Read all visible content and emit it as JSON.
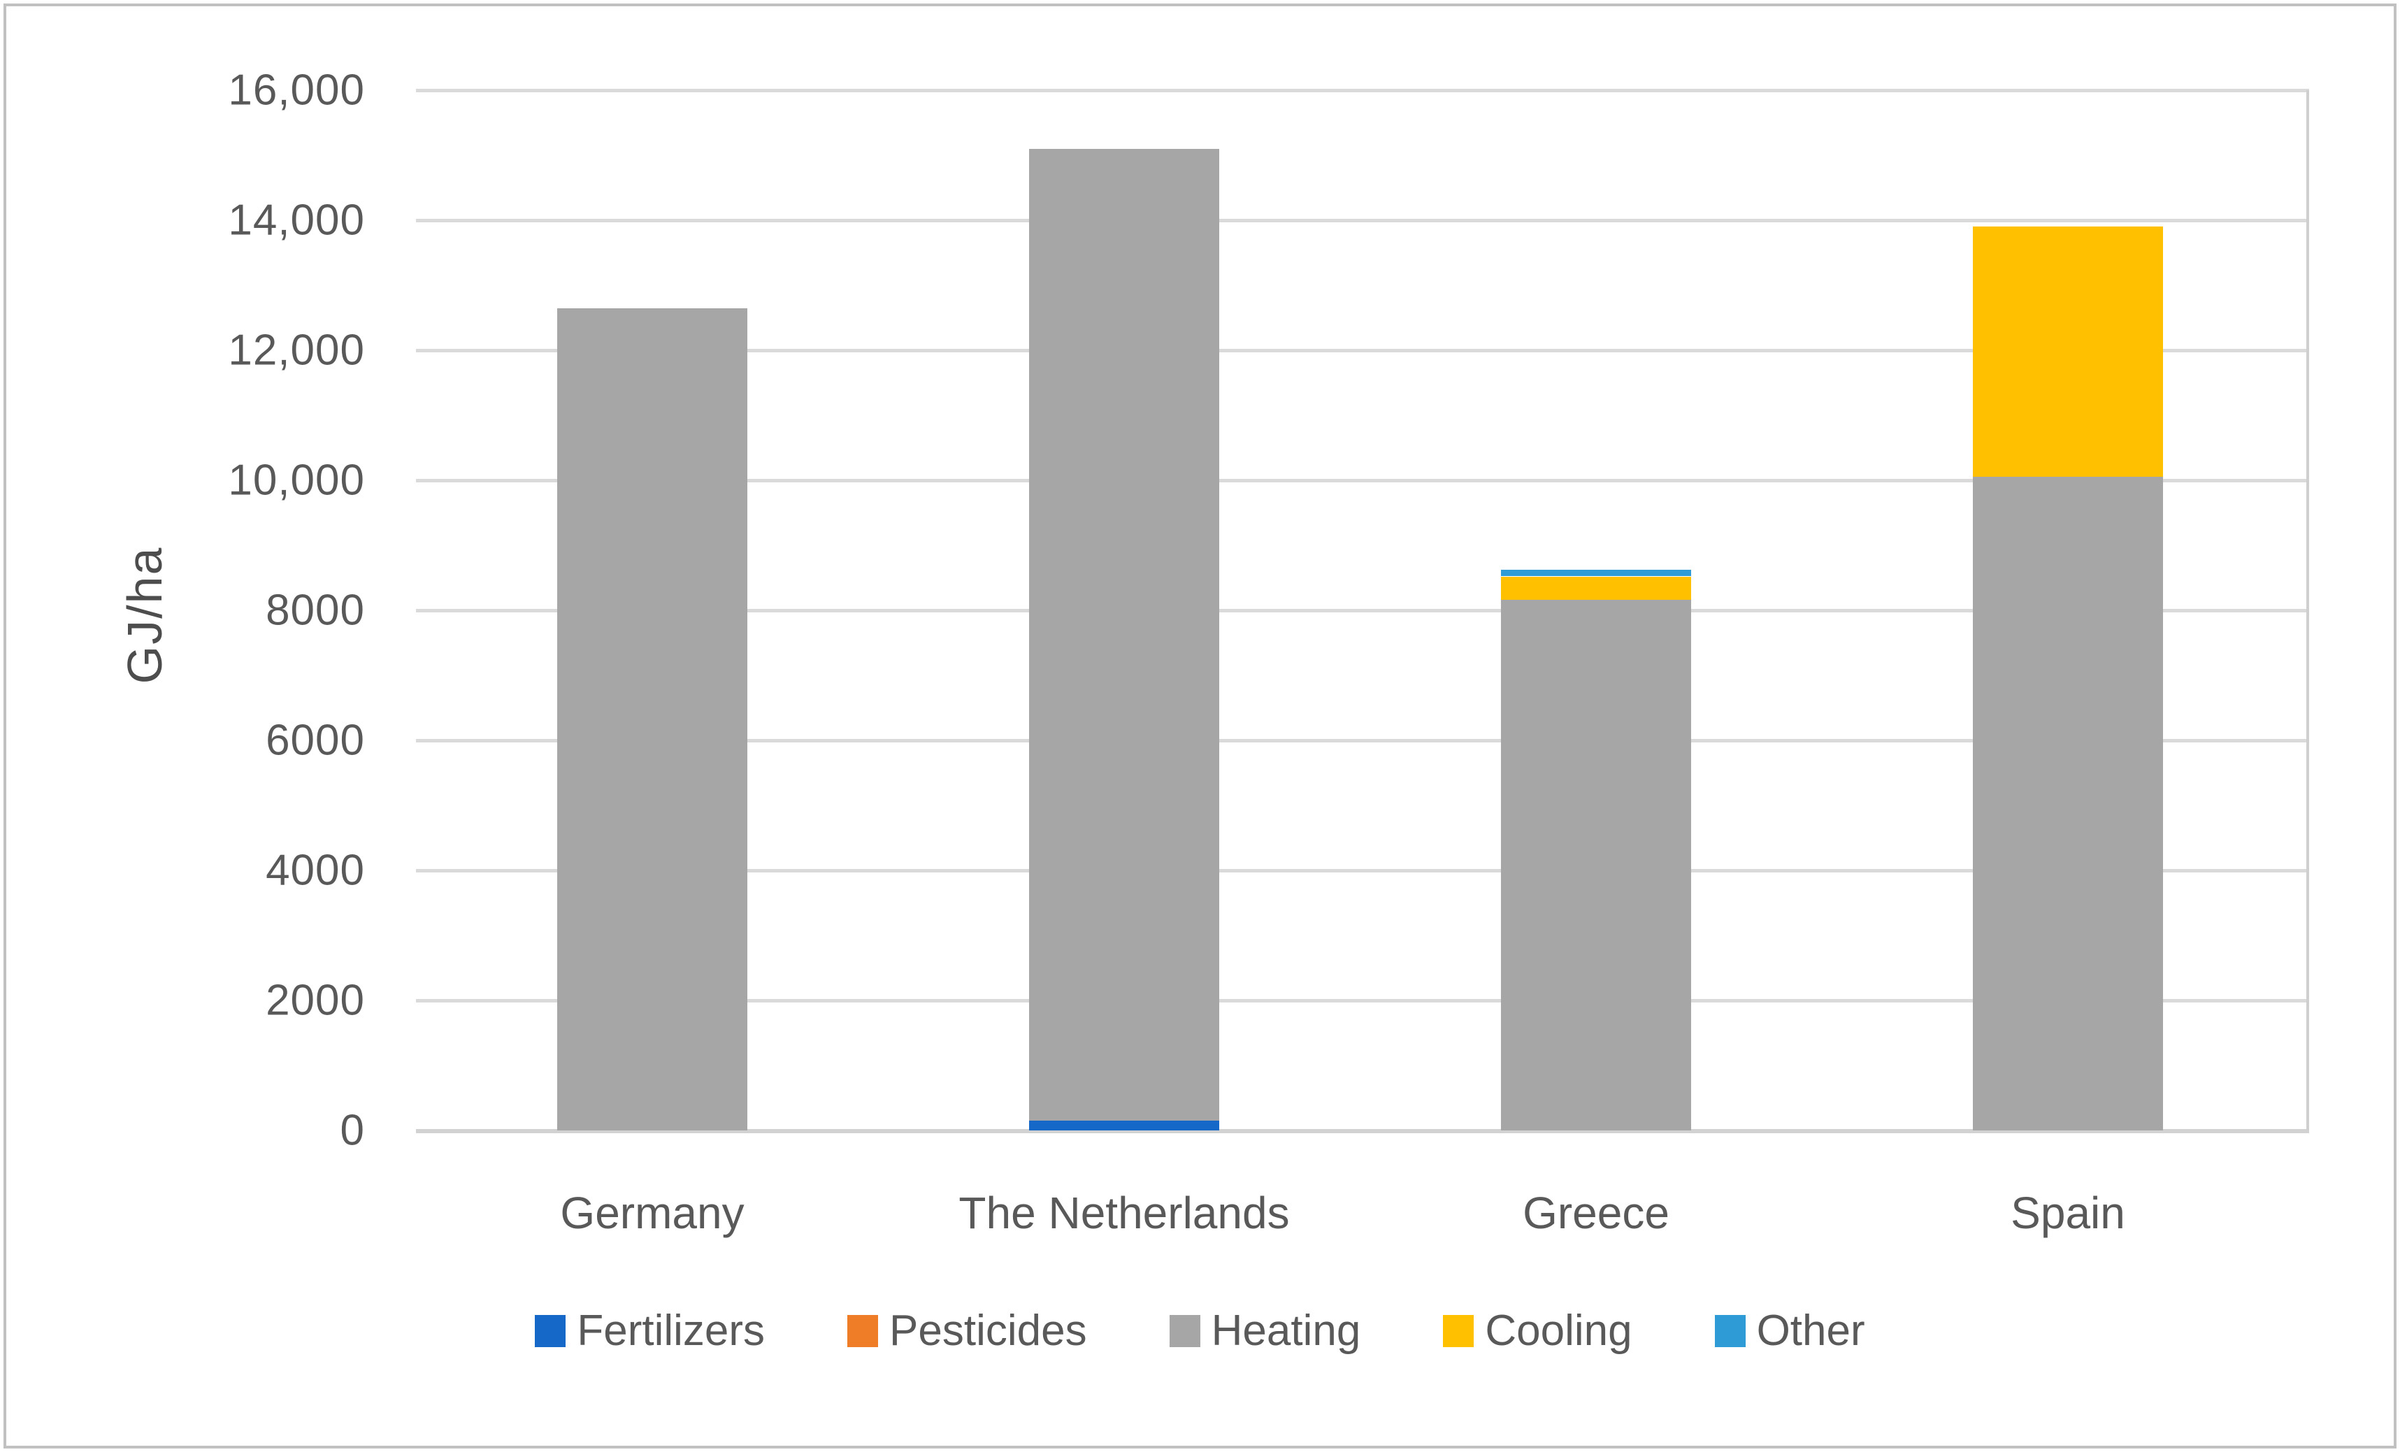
{
  "figure": {
    "background_color": "#ffffff",
    "border_color": "#c1c1c1"
  },
  "chart_data": {
    "type": "bar",
    "stacked": true,
    "title": "",
    "xlabel": "",
    "ylabel": "GJ/ha",
    "categories": [
      "Germany",
      "The Netherlands",
      "Greece",
      "Spain"
    ],
    "series": [
      {
        "name": "Fertilizers",
        "color": "#1668c8",
        "values": [
          0,
          150,
          0,
          0
        ]
      },
      {
        "name": "Pesticides",
        "color": "#ef7c27",
        "values": [
          0,
          0,
          0,
          0
        ]
      },
      {
        "name": "Heating",
        "color": "#a6a6a6",
        "values": [
          12650,
          14950,
          8170,
          10050
        ]
      },
      {
        "name": "Cooling",
        "color": "#ffc000",
        "values": [
          0,
          0,
          350,
          3850
        ]
      },
      {
        "name": "Other",
        "color": "#2e9bd6",
        "values": [
          0,
          0,
          100,
          0
        ]
      }
    ],
    "totals": [
      12650,
      15100,
      8620,
      13900
    ],
    "ylim": [
      0,
      16000
    ],
    "yticks": [
      0,
      2000,
      4000,
      6000,
      8000,
      10000,
      12000,
      14000,
      16000
    ],
    "yticklabels": [
      "0",
      "2000",
      "4000",
      "6000",
      "8000",
      "10,000",
      "12,000",
      "14,000",
      "16,000"
    ],
    "grid": "horizontal",
    "gridline_color": "#dadada",
    "legend_position": "bottom",
    "legend_order": [
      "Fertilizers",
      "Pesticides",
      "Heating",
      "Cooling",
      "Other"
    ],
    "text_color": "#595959"
  }
}
